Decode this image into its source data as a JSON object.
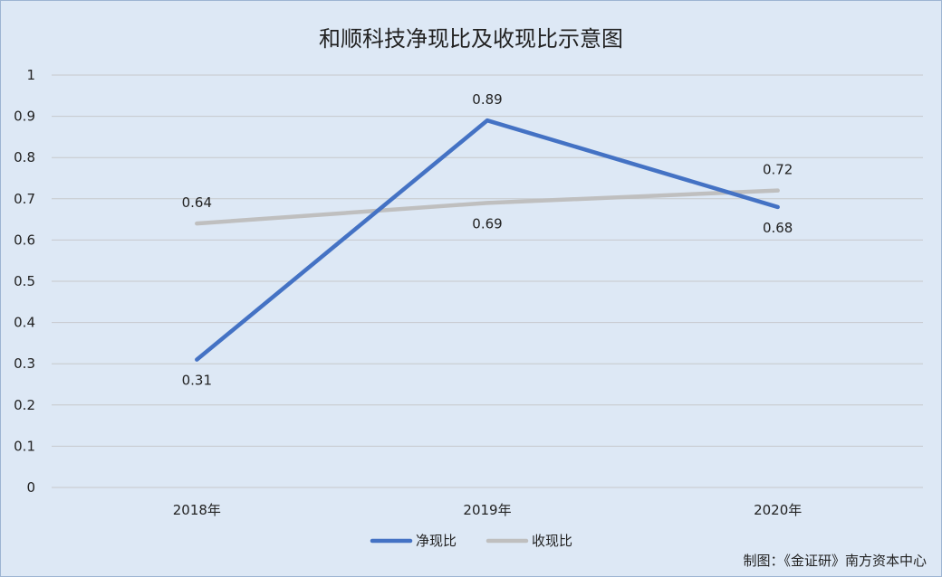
{
  "chart_data": {
    "type": "line",
    "title": "和顺科技净现比及收现比示意图",
    "categories": [
      "2018年",
      "2019年",
      "2020年"
    ],
    "series": [
      {
        "name": "净现比",
        "values": [
          0.31,
          0.89,
          0.68
        ],
        "color": "#4472c4"
      },
      {
        "name": "收现比",
        "values": [
          0.64,
          0.69,
          0.72
        ],
        "color": "#bfbfbf"
      }
    ],
    "data_labels": [
      [
        "0.31",
        "0.89",
        "0.68"
      ],
      [
        "0.64",
        "0.69",
        "0.72"
      ]
    ],
    "ylim": [
      0,
      1
    ],
    "y_ticks": [
      "0",
      "0.1",
      "0.2",
      "0.3",
      "0.4",
      "0.5",
      "0.6",
      "0.7",
      "0.8",
      "0.9",
      "1"
    ],
    "grid": true,
    "legend_position": "bottom"
  },
  "credit": "制图：《金证研》南方资本中心"
}
